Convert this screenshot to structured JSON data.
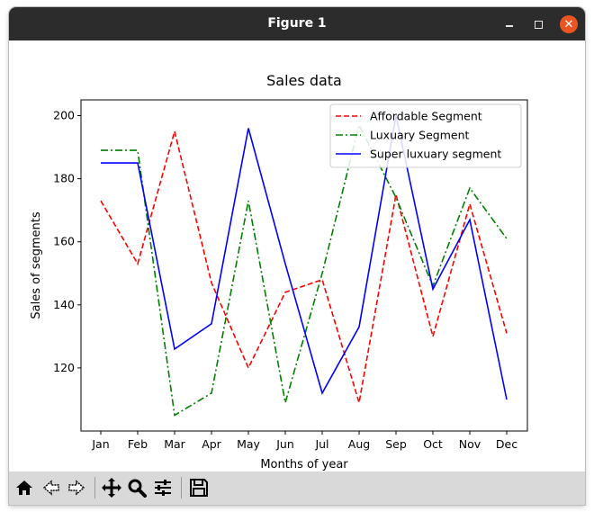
{
  "window": {
    "title": "Figure 1"
  },
  "toolbar": {
    "items": [
      {
        "icon": "home-icon"
      },
      {
        "icon": "back-arrow-icon"
      },
      {
        "icon": "forward-arrow-icon"
      },
      {
        "icon": "pan-move-icon"
      },
      {
        "icon": "zoom-magnifier-icon"
      },
      {
        "icon": "configure-subplots-icon"
      },
      {
        "icon": "save-floppy-icon"
      }
    ]
  },
  "chart_data": {
    "type": "line",
    "title": "Sales data",
    "xlabel": "Months of year",
    "ylabel": "Sales of segments",
    "categories": [
      "Jan",
      "Feb",
      "Mar",
      "Apr",
      "May",
      "Jun",
      "Jul",
      "Aug",
      "Sep",
      "Oct",
      "Nov",
      "Dec"
    ],
    "ylim": [
      100,
      205
    ],
    "yticks": [
      120,
      140,
      160,
      180,
      200
    ],
    "legend_position": "top-right",
    "grid": false,
    "series": [
      {
        "name": "Affordable Segment",
        "color": "#ff0000",
        "style": "dashed",
        "values": [
          173,
          153,
          195,
          147,
          120,
          144,
          148,
          109,
          175,
          130,
          172,
          131
        ]
      },
      {
        "name": "Luxuary Segment",
        "color": "#008000",
        "style": "dashdot",
        "values": [
          189,
          189,
          105,
          112,
          173,
          109,
          150,
          197,
          174,
          146,
          177,
          161
        ]
      },
      {
        "name": "Super luxuary segment",
        "color": "#0000ff",
        "style": "solid",
        "values": [
          185,
          185,
          126,
          134,
          196,
          153,
          112,
          133,
          200,
          145,
          167,
          110
        ]
      }
    ]
  }
}
